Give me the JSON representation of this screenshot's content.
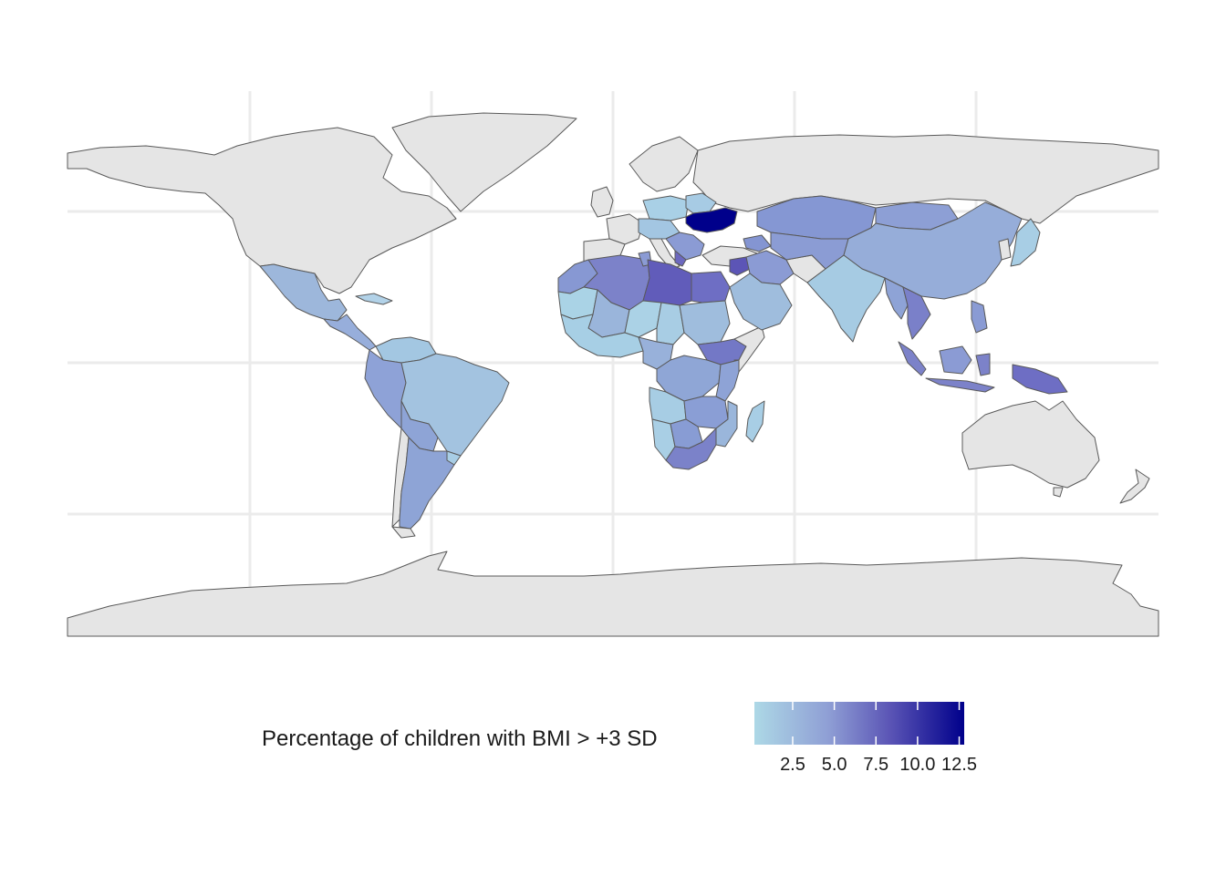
{
  "chart_data": {
    "type": "choropleth",
    "title": "",
    "legend": {
      "title": "Percentage of children with BMI > +3 SD",
      "position": "bottom",
      "ticks": [
        "2.5",
        "5.0",
        "7.5",
        "10.0",
        "12.5"
      ],
      "tick_values": [
        2.5,
        5.0,
        7.5,
        10.0,
        12.5
      ],
      "range": [
        0.2,
        12.8
      ],
      "colors": {
        "low": "#add8e6",
        "high": "#00008b",
        "no_data": "#e5e5e5",
        "border": "#595959"
      }
    },
    "grid": true,
    "regions": [
      {
        "name": "Ukraine",
        "value": 12.5
      },
      {
        "name": "Libya",
        "value": 8.5
      },
      {
        "name": "Syria",
        "value": 9.0
      },
      {
        "name": "Egypt",
        "value": 7.5
      },
      {
        "name": "Albania",
        "value": 8.0
      },
      {
        "name": "Algeria",
        "value": 6.0
      },
      {
        "name": "Morocco",
        "value": 5.5
      },
      {
        "name": "Papua New Guinea",
        "value": 6.0
      },
      {
        "name": "Indonesia",
        "value": 5.5
      },
      {
        "name": "Thailand",
        "value": 5.5
      },
      {
        "name": "Kazakhstan",
        "value": 5.0
      },
      {
        "name": "China",
        "value": 4.0
      },
      {
        "name": "Mongolia",
        "value": 4.5
      },
      {
        "name": "Argentina",
        "value": 4.5
      },
      {
        "name": "Paraguay",
        "value": 4.5
      },
      {
        "name": "South Africa",
        "value": 5.0
      },
      {
        "name": "Botswana",
        "value": 4.0
      },
      {
        "name": "Ethiopia",
        "value": 6.0
      },
      {
        "name": "Mexico",
        "value": 3.5
      },
      {
        "name": "Brazil",
        "value": 2.5
      },
      {
        "name": "India",
        "value": 1.5
      },
      {
        "name": "Saudi Arabia",
        "value": 3.0
      },
      {
        "name": "Japan",
        "value": 1.5
      },
      {
        "name": "Madagascar",
        "value": 1.5
      },
      {
        "name": "Angola",
        "value": 2.0
      }
    ]
  }
}
